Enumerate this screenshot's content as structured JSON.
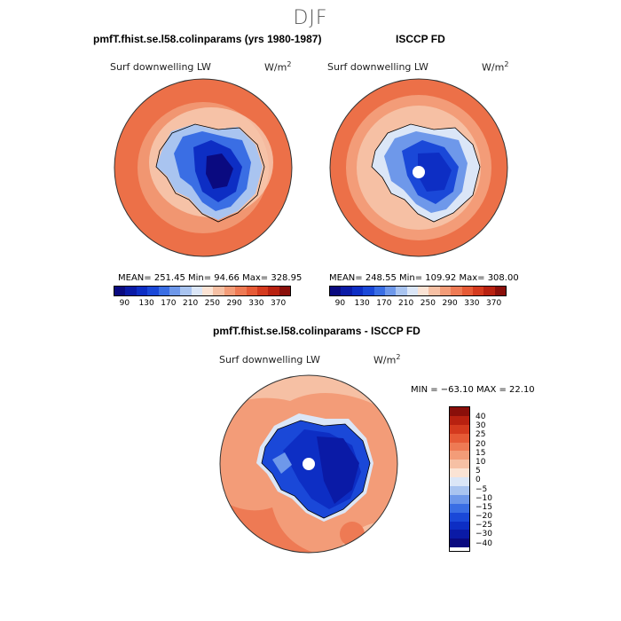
{
  "season": "DJF",
  "panels": {
    "model": {
      "title": "pmfT.fhist.se.l58.colinparams (yrs 1980-1987)",
      "variable": "Surf downwelling LW",
      "unit_base": "W/m",
      "unit_exp": "2",
      "stats": "MEAN= 251.45   Min=   94.66   Max= 328.95"
    },
    "obs": {
      "title": "ISCCP FD",
      "variable": "Surf downwelling LW",
      "unit_base": "W/m",
      "unit_exp": "2",
      "stats": "MEAN= 248.55   Min=  109.92   Max= 308.00"
    },
    "diff": {
      "title": "pmfT.fhist.se.l58.colinparams - ISCCP FD",
      "variable": "Surf downwelling LW",
      "unit_base": "W/m",
      "unit_exp": "2",
      "stats": "MIN = −63.10 MAX =  22.10"
    }
  },
  "colorbar_abs": {
    "ticks": [
      "90",
      "130",
      "170",
      "210",
      "250",
      "290",
      "330",
      "370"
    ],
    "colors": [
      "#0a0a80",
      "#0a1aa6",
      "#0d2ec4",
      "#1a48d8",
      "#3a6ee4",
      "#6e98ea",
      "#a9c4f0",
      "#dbe6f7",
      "#fbe3d4",
      "#f6c0a4",
      "#f39c78",
      "#ee7a54",
      "#e65a36",
      "#d43a1e",
      "#b82110",
      "#8a0f0a"
    ]
  },
  "colorbar_diff": {
    "ticks": [
      "40",
      "30",
      "25",
      "20",
      "15",
      "10",
      "5",
      "0",
      "−5",
      "−10",
      "−15",
      "−20",
      "−25",
      "−30",
      "−40"
    ],
    "colors": [
      "#8a0f0a",
      "#b82110",
      "#d43a1e",
      "#e65a36",
      "#ee7a54",
      "#f39c78",
      "#f6c0a4",
      "#fbe3d4",
      "#dbe6f7",
      "#a9c4f0",
      "#6e98ea",
      "#3a6ee4",
      "#1a48d8",
      "#0d2ec4",
      "#0a1aa6",
      "#0a0a80"
    ]
  }
}
